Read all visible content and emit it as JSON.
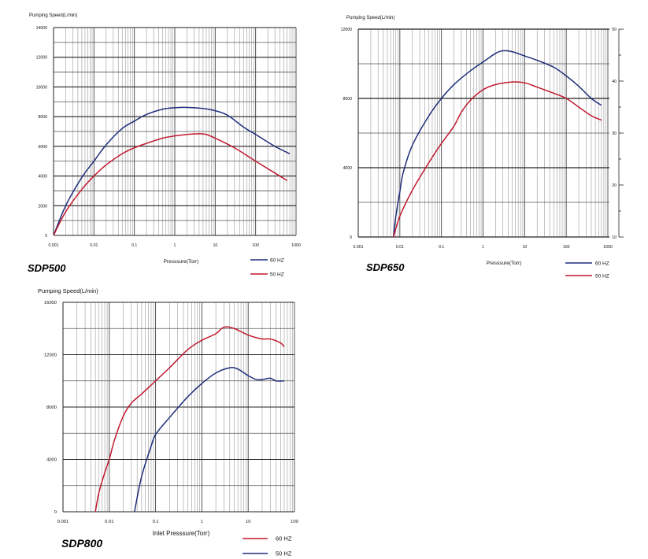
{
  "chart_data": [
    {
      "type": "line",
      "model": "SDP500",
      "title": "Pumping Speed(L/min)",
      "xlabel": "Presssure(Torr)",
      "ylabel": "Pumping Speed(L/min)",
      "x_scale": "log",
      "xlim": [
        0.001,
        1000
      ],
      "ylim": [
        0,
        14000
      ],
      "x_ticks": [
        "0.001",
        "0.01",
        "0.1",
        "1",
        "10",
        "100",
        "1000"
      ],
      "y_ticks": [
        "0",
        "2000",
        "4000",
        "6000",
        "8000",
        "10000",
        "12000",
        "14000"
      ],
      "grid": true,
      "legend_position": "bottom-right",
      "series": [
        {
          "name": "60 HZ",
          "color": "#1f2d7a",
          "points": [
            [
              0.001,
              0
            ],
            [
              0.002,
              2000
            ],
            [
              0.005,
              3900
            ],
            [
              0.01,
              5000
            ],
            [
              0.02,
              6100
            ],
            [
              0.05,
              7200
            ],
            [
              0.1,
              7700
            ],
            [
              0.2,
              8150
            ],
            [
              0.5,
              8500
            ],
            [
              1,
              8600
            ],
            [
              2,
              8620
            ],
            [
              5,
              8550
            ],
            [
              10,
              8400
            ],
            [
              20,
              8100
            ],
            [
              50,
              7300
            ],
            [
              100,
              6800
            ],
            [
              300,
              6000
            ],
            [
              700,
              5500
            ]
          ]
        },
        {
          "name": "50 HZ",
          "color": "#c0182f",
          "points": [
            [
              0.001,
              0
            ],
            [
              0.002,
              1600
            ],
            [
              0.005,
              3100
            ],
            [
              0.01,
              4000
            ],
            [
              0.02,
              4750
            ],
            [
              0.05,
              5500
            ],
            [
              0.1,
              5900
            ],
            [
              0.2,
              6200
            ],
            [
              0.5,
              6550
            ],
            [
              1,
              6700
            ],
            [
              2,
              6800
            ],
            [
              4,
              6850
            ],
            [
              6,
              6800
            ],
            [
              10,
              6550
            ],
            [
              30,
              5900
            ],
            [
              100,
              5000
            ],
            [
              300,
              4200
            ],
            [
              600,
              3700
            ]
          ]
        }
      ]
    },
    {
      "type": "line",
      "model": "SDP650",
      "title": "Pumping Speed(L/min)",
      "xlabel": "Presssure(Torr)",
      "ylabel": "Pumping Speed(L/min)",
      "x_scale": "log",
      "xlim": [
        0.001,
        1000
      ],
      "ylim": [
        0,
        12000
      ],
      "x_ticks": [
        "0.001",
        "0.01",
        "0.1",
        "1",
        "10",
        "100",
        "1000"
      ],
      "y_ticks": [
        "0",
        "4000",
        "8000",
        "12000"
      ],
      "y2_ticks": [
        "10",
        "20",
        "30",
        "40",
        "50"
      ],
      "grid": true,
      "legend_position": "bottom-right",
      "series": [
        {
          "name": "60 HZ",
          "color": "#1f2d7a",
          "points": [
            [
              0.007,
              0
            ],
            [
              0.008,
              1200
            ],
            [
              0.01,
              2600
            ],
            [
              0.012,
              3700
            ],
            [
              0.02,
              5300
            ],
            [
              0.05,
              7000
            ],
            [
              0.1,
              8000
            ],
            [
              0.2,
              8800
            ],
            [
              0.5,
              9600
            ],
            [
              1,
              10100
            ],
            [
              2,
              10600
            ],
            [
              3,
              10750
            ],
            [
              5,
              10700
            ],
            [
              10,
              10450
            ],
            [
              20,
              10200
            ],
            [
              50,
              9800
            ],
            [
              100,
              9300
            ],
            [
              200,
              8700
            ],
            [
              400,
              8000
            ],
            [
              700,
              7600
            ]
          ]
        },
        {
          "name": "50 HZ",
          "color": "#c0182f",
          "points": [
            [
              0.007,
              0
            ],
            [
              0.01,
              1200
            ],
            [
              0.02,
              2700
            ],
            [
              0.05,
              4300
            ],
            [
              0.1,
              5400
            ],
            [
              0.2,
              6400
            ],
            [
              0.3,
              7200
            ],
            [
              0.5,
              7900
            ],
            [
              1,
              8500
            ],
            [
              2,
              8800
            ],
            [
              5,
              8950
            ],
            [
              10,
              8900
            ],
            [
              20,
              8650
            ],
            [
              50,
              8300
            ],
            [
              100,
              8000
            ],
            [
              200,
              7500
            ],
            [
              400,
              7000
            ],
            [
              700,
              6750
            ]
          ]
        }
      ]
    },
    {
      "type": "line",
      "model": "SDP800",
      "title": "Pumping Speed(L/min)",
      "xlabel": "Inlet Presssure(Torr)",
      "ylabel": "Pumping Speed(L/min)",
      "x_scale": "log",
      "xlim": [
        0.001,
        100
      ],
      "ylim": [
        0,
        16000
      ],
      "x_ticks": [
        "0.001",
        "0.01",
        "0.1",
        "1",
        "10",
        "100"
      ],
      "y_ticks": [
        "0",
        "4000",
        "8000",
        "12000",
        "16000"
      ],
      "grid": true,
      "legend_position": "bottom-right",
      "series": [
        {
          "name": "60 HZ",
          "color": "#c0182f",
          "points": [
            [
              0.005,
              0
            ],
            [
              0.006,
              1500
            ],
            [
              0.008,
              3000
            ],
            [
              0.01,
              4000
            ],
            [
              0.013,
              5500
            ],
            [
              0.02,
              7300
            ],
            [
              0.03,
              8300
            ],
            [
              0.05,
              9000
            ],
            [
              0.1,
              10000
            ],
            [
              0.2,
              11000
            ],
            [
              0.5,
              12400
            ],
            [
              1,
              13100
            ],
            [
              2,
              13600
            ],
            [
              3,
              14100
            ],
            [
              5,
              14000
            ],
            [
              10,
              13500
            ],
            [
              20,
              13200
            ],
            [
              30,
              13200
            ],
            [
              50,
              12900
            ],
            [
              60,
              12600
            ]
          ]
        },
        {
          "name": "50 HZ",
          "color": "#1f2d7a",
          "points": [
            [
              0.035,
              0
            ],
            [
              0.05,
              2700
            ],
            [
              0.08,
              5000
            ],
            [
              0.1,
              5900
            ],
            [
              0.2,
              7200
            ],
            [
              0.5,
              8800
            ],
            [
              1,
              9800
            ],
            [
              2,
              10600
            ],
            [
              4,
              11000
            ],
            [
              6,
              10900
            ],
            [
              10,
              10400
            ],
            [
              15,
              10100
            ],
            [
              20,
              10100
            ],
            [
              30,
              10200
            ],
            [
              40,
              10000
            ],
            [
              60,
              10000
            ]
          ]
        }
      ]
    }
  ]
}
